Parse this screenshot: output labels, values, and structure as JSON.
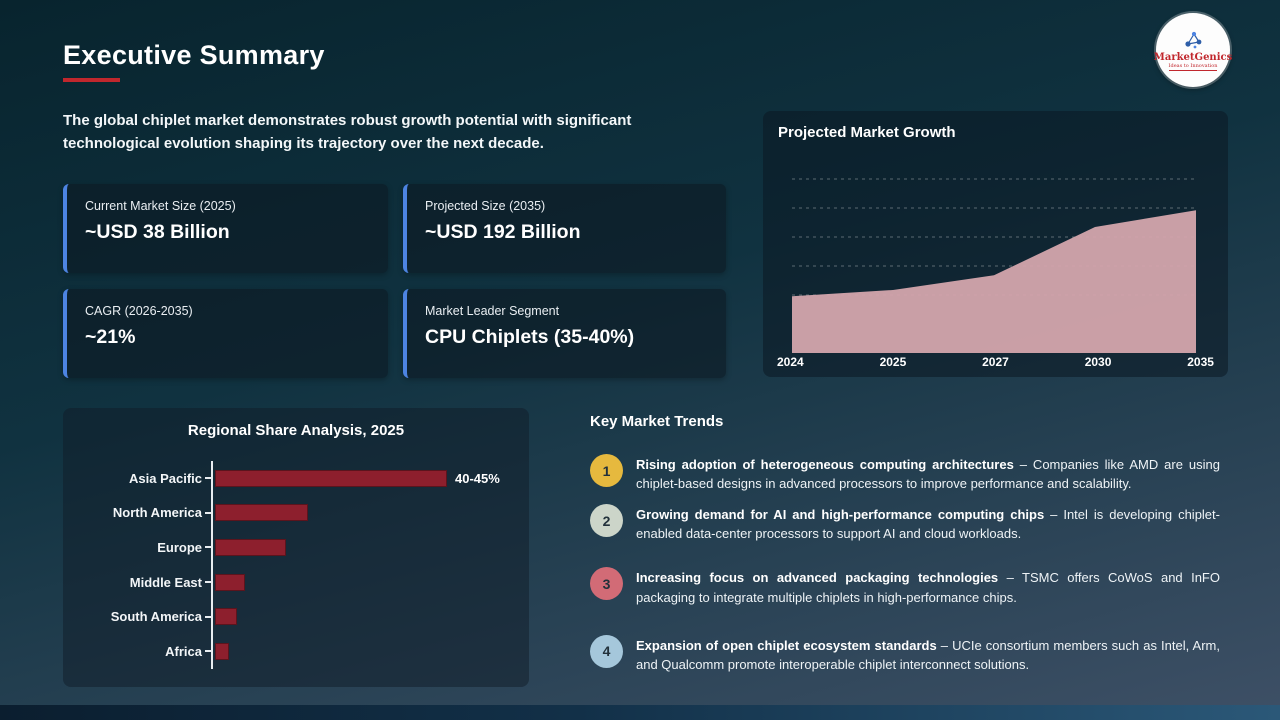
{
  "page": {
    "title": "Executive Summary",
    "intro": "The global chiplet market demonstrates robust growth potential with significant technological evolution shaping its trajectory over the next decade."
  },
  "logo": {
    "name": "MarketGenics",
    "tagline": "Ideas to Innovation",
    "text_color": "#c1272d"
  },
  "accent": {
    "red": "#c1272d",
    "card_border_blue": "#4d84e2"
  },
  "stat_cards": [
    {
      "label": "Current Market Size (2025)",
      "value": "~USD 38 Billion"
    },
    {
      "label": "Projected Size (2035)",
      "value": "~USD 192 Billion"
    },
    {
      "label": "CAGR (2026-2035)",
      "value": "~21%"
    },
    {
      "label": "Market Leader Segment",
      "value": "CPU Chiplets (35-40%)"
    }
  ],
  "growth_chart": {
    "title": "Projected Market Growth"
  },
  "regional_chart": {
    "title": "Regional Share Analysis, 2025"
  },
  "trends": {
    "title": "Key Market Trends",
    "items": [
      {
        "number": "1",
        "badge_color": "#e6b93e",
        "bold": "Rising adoption of heterogeneous computing architectures",
        "rest": "– Companies like AMD are using chiplet-based designs in advanced processors to improve performance and scalability."
      },
      {
        "number": "2",
        "badge_color": "#ccd5c9",
        "bold": "Growing demand for AI and high-performance computing chips",
        "rest": "– Intel is developing chiplet-enabled data-center processors to support AI and cloud workloads."
      },
      {
        "number": "3",
        "badge_color": "#d26b76",
        "bold": "Increasing focus on advanced packaging technologies",
        "rest": "– TSMC offers CoWoS and InFO packaging to integrate multiple chiplets in high-performance chips."
      },
      {
        "number": "4",
        "badge_color": "#a5c7db",
        "bold": "Expansion of open chiplet ecosystem standards",
        "rest": "– UCIe consortium members such as Intel, Arm, and Qualcomm promote interoperable chiplet interconnect solutions."
      }
    ]
  },
  "chart_data": [
    {
      "type": "area",
      "title": "Projected Market Growth",
      "x": [
        "2024",
        "2025",
        "2027",
        "2030",
        "2035"
      ],
      "values": [
        27,
        30,
        37,
        60,
        68
      ],
      "ylim": [
        0,
        100
      ],
      "note": "no y-axis labels shown; values estimated as % of plot height",
      "grid": "dashed horizontal gridlines",
      "fill_color": "#d4a5ad"
    },
    {
      "type": "bar",
      "title": "Regional Share Analysis, 2025",
      "orientation": "horizontal",
      "categories": [
        "Asia Pacific",
        "North America",
        "Europe",
        "Middle East",
        "South America",
        "Africa"
      ],
      "values": [
        42.5,
        17,
        13,
        5.5,
        4,
        2.5
      ],
      "data_labels": [
        "40-45%",
        "",
        "",
        "",
        "",
        ""
      ],
      "xlim": [
        0,
        44
      ],
      "bar_color": "#8d1f2d",
      "legend": "none",
      "grid": "off"
    }
  ]
}
